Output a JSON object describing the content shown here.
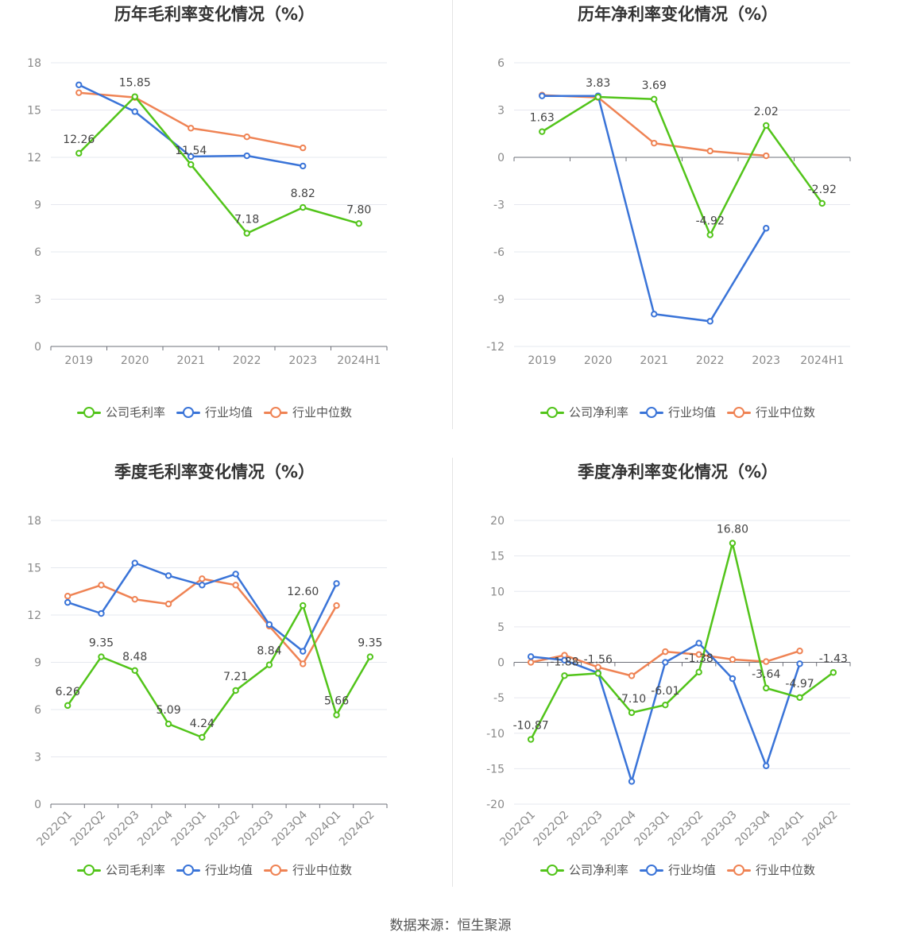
{
  "footer": "数据来源：恒生聚源",
  "colors": {
    "company": "#52c41a",
    "avg": "#3a74d8",
    "median": "#ef8354"
  },
  "chart_data": [
    {
      "id": "annual-gross",
      "type": "line",
      "title": "历年毛利率变化情况（%）",
      "categories": [
        "2019",
        "2020",
        "2021",
        "2022",
        "2023",
        "2024H1"
      ],
      "ylim": [
        0,
        18
      ],
      "yticks": [
        0,
        3,
        6,
        9,
        12,
        15,
        18
      ],
      "rotate_x": false,
      "series": [
        {
          "name": "公司毛利率",
          "key": "company",
          "values": [
            12.26,
            15.85,
            11.54,
            7.18,
            8.82,
            7.8
          ],
          "labels": [
            "12.26",
            "15.85",
            "11.54",
            "7.18",
            "8.82",
            "7.80"
          ]
        },
        {
          "name": "行业均值",
          "key": "avg",
          "values": [
            16.6,
            14.9,
            12.05,
            12.1,
            11.45,
            null
          ]
        },
        {
          "name": "行业中位数",
          "key": "median",
          "values": [
            16.1,
            15.8,
            13.85,
            13.3,
            12.6,
            null
          ]
        }
      ]
    },
    {
      "id": "annual-net",
      "type": "line",
      "title": "历年净利率变化情况（%）",
      "categories": [
        "2019",
        "2020",
        "2021",
        "2022",
        "2023",
        "2024H1"
      ],
      "ylim": [
        -12,
        6
      ],
      "yticks": [
        -12,
        -9,
        -6,
        -3,
        0,
        3,
        6
      ],
      "rotate_x": false,
      "series": [
        {
          "name": "公司净利率",
          "key": "company",
          "values": [
            1.63,
            3.83,
            3.69,
            -4.92,
            2.02,
            -2.92
          ],
          "labels": [
            "1.63",
            "3.83",
            "3.69",
            "-4.92",
            "2.02",
            "-2.92"
          ]
        },
        {
          "name": "行业均值",
          "key": "avg",
          "values": [
            3.9,
            3.9,
            -9.95,
            -10.4,
            -4.5,
            null
          ]
        },
        {
          "name": "行业中位数",
          "key": "median",
          "values": [
            3.95,
            3.8,
            0.9,
            0.4,
            0.1,
            null
          ]
        }
      ]
    },
    {
      "id": "quarter-gross",
      "type": "line",
      "title": "季度毛利率变化情况（%）",
      "categories": [
        "2022Q1",
        "2022Q2",
        "2022Q3",
        "2022Q4",
        "2023Q1",
        "2023Q2",
        "2023Q3",
        "2023Q4",
        "2024Q1",
        "2024Q2"
      ],
      "ylim": [
        0,
        18
      ],
      "yticks": [
        0,
        3,
        6,
        9,
        12,
        15,
        18
      ],
      "rotate_x": true,
      "series": [
        {
          "name": "公司毛利率",
          "key": "company",
          "values": [
            6.26,
            9.35,
            8.48,
            5.09,
            4.24,
            7.21,
            8.84,
            12.6,
            5.66,
            9.35
          ],
          "labels": [
            "6.26",
            "9.35",
            "8.48",
            "5.09",
            "4.24",
            "7.21",
            "8.84",
            "12.60",
            "5.66",
            "9.35"
          ]
        },
        {
          "name": "行业均值",
          "key": "avg",
          "values": [
            12.8,
            12.1,
            15.3,
            14.5,
            13.9,
            14.6,
            11.4,
            9.7,
            14.0,
            null
          ]
        },
        {
          "name": "行业中位数",
          "key": "median",
          "values": [
            13.2,
            13.9,
            13.0,
            12.7,
            14.3,
            13.9,
            11.3,
            8.9,
            12.6,
            null
          ]
        }
      ]
    },
    {
      "id": "quarter-net",
      "type": "line",
      "title": "季度净利率变化情况（%）",
      "categories": [
        "2022Q1",
        "2022Q2",
        "2022Q3",
        "2022Q4",
        "2023Q1",
        "2023Q2",
        "2023Q3",
        "2023Q4",
        "2024Q1",
        "2024Q2"
      ],
      "ylim": [
        -20,
        20
      ],
      "yticks": [
        -20,
        -15,
        -10,
        -5,
        0,
        5,
        10,
        15,
        20
      ],
      "rotate_x": true,
      "series": [
        {
          "name": "公司净利率",
          "key": "company",
          "values": [
            -10.87,
            -1.88,
            -1.56,
            -7.1,
            -6.01,
            -1.38,
            16.8,
            -3.64,
            -4.97,
            -1.43
          ],
          "labels": [
            "-10.87",
            "-1.88",
            "-1.56",
            "-7.10",
            "-6.01",
            "-1.38",
            "16.80",
            "-3.64",
            "-4.97",
            "-1.43"
          ]
        },
        {
          "name": "行业均值",
          "key": "avg",
          "values": [
            0.8,
            0.3,
            -1.5,
            -16.8,
            0.0,
            2.7,
            -2.3,
            -14.6,
            -0.2,
            null
          ]
        },
        {
          "name": "行业中位数",
          "key": "median",
          "values": [
            0.0,
            1.0,
            -0.7,
            -1.9,
            1.5,
            1.1,
            0.4,
            0.1,
            1.6,
            null
          ]
        }
      ]
    }
  ]
}
